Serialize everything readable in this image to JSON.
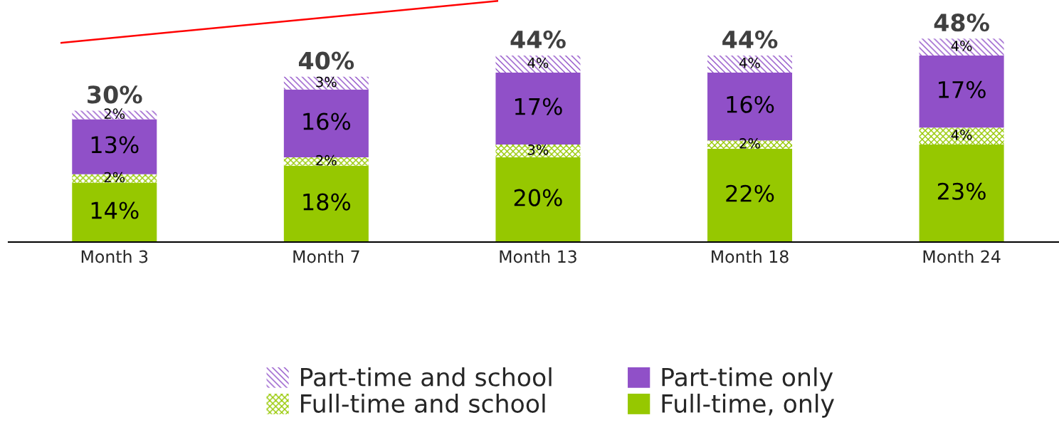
{
  "chart_data": {
    "type": "bar",
    "stacked": true,
    "categories": [
      "Month 3",
      "Month 7",
      "Month 13",
      "Month 18",
      "Month 24"
    ],
    "series": [
      {
        "name": "Full-time, only",
        "color": "#96c800",
        "values": [
          14,
          18,
          20,
          22,
          23
        ],
        "value_labels": [
          "14%",
          "18%",
          "20%",
          "22%",
          "23%"
        ]
      },
      {
        "name": "Full-time and school",
        "color": "#96c800",
        "values": [
          2,
          2,
          3,
          2,
          4
        ],
        "value_labels": [
          "2%",
          "2%",
          "3%",
          "2%",
          "4%"
        ]
      },
      {
        "name": "Part-time only",
        "color": "#9050c8",
        "values": [
          13,
          16,
          17,
          16,
          17
        ],
        "value_labels": [
          "13%",
          "16%",
          "17%",
          "16%",
          "17%"
        ]
      },
      {
        "name": "Part-time and school",
        "color": "#9050c8",
        "values": [
          2,
          3,
          4,
          4,
          4
        ],
        "value_labels": [
          "2%",
          "3%",
          "4%",
          "4%",
          "4%"
        ]
      }
    ],
    "totals": [
      "30%",
      "40%",
      "44%",
      "44%",
      "48%"
    ],
    "legend": "bottom",
    "grid": false
  }
}
